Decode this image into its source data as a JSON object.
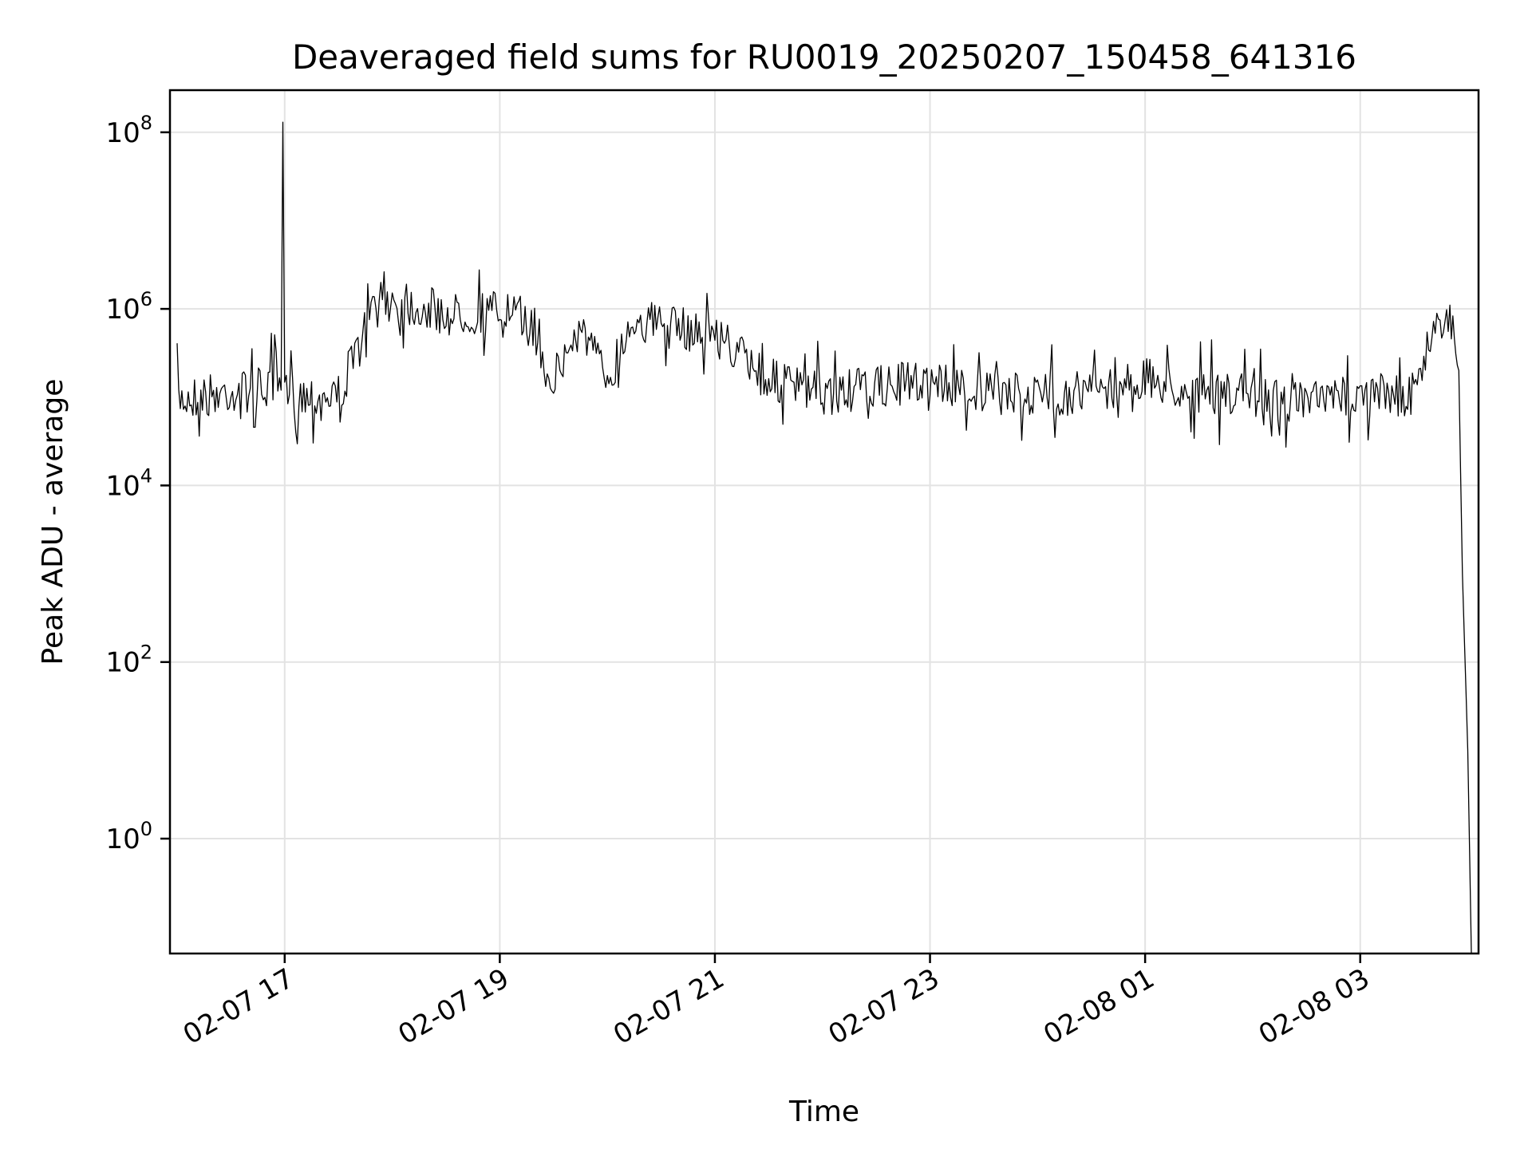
{
  "chart_data": {
    "type": "line",
    "title": "Deaveraged field sums for RU0019_20250207_150458_641316",
    "xlabel": "Time",
    "ylabel": "Peak ADU - average",
    "y_scale": "log",
    "grid": true,
    "xlim": [
      "2025-02-07 15:56",
      "2025-02-08 04:06"
    ],
    "ylim": [
      0.05,
      300000000.0
    ],
    "x_ticks": [
      "02-07 17",
      "02-07 19",
      "02-07 21",
      "02-07 23",
      "02-08 01",
      "02-08 03"
    ],
    "y_ticks": [
      "10^0",
      "10^2",
      "10^4",
      "10^6",
      "10^8"
    ],
    "series": [
      {
        "color": "#000000",
        "x": [
          "2025-02-07 16:00",
          "2025-02-07 16:30",
          "2025-02-07 16:58",
          "2025-02-07 16:59",
          "2025-02-07 17:00",
          "2025-02-07 17:30",
          "2025-02-07 17:40",
          "2025-02-07 17:50",
          "2025-02-07 18:00",
          "2025-02-07 18:30",
          "2025-02-07 19:00",
          "2025-02-07 19:15",
          "2025-02-07 19:30",
          "2025-02-07 19:45",
          "2025-02-07 20:00",
          "2025-02-07 20:15",
          "2025-02-07 20:30",
          "2025-02-07 21:00",
          "2025-02-07 21:30",
          "2025-02-07 22:00",
          "2025-02-07 22:30",
          "2025-02-07 23:00",
          "2025-02-07 23:30",
          "2025-02-08 00:00",
          "2025-02-08 00:30",
          "2025-02-08 01:00",
          "2025-02-08 01:30",
          "2025-02-08 02:00",
          "2025-02-08 02:30",
          "2025-02-08 03:00",
          "2025-02-08 03:15",
          "2025-02-08 03:30",
          "2025-02-08 03:40",
          "2025-02-08 03:50",
          "2025-02-08 03:55",
          "2025-02-08 03:57",
          "2025-02-08 04:00",
          "2025-02-08 04:02"
        ],
        "y": [
          90000,
          110000,
          120000,
          130000000,
          100000,
          100000,
          300000,
          1000000,
          1200000,
          800000,
          900000,
          700000,
          150000,
          600000,
          150000,
          800000,
          600000,
          500000,
          150000,
          100000,
          120000,
          150000,
          100000,
          100000,
          110000,
          150000,
          100000,
          100000,
          80000,
          100000,
          100000,
          100000,
          500000,
          900000,
          200000,
          1000,
          10,
          0.05
        ]
      }
    ]
  }
}
